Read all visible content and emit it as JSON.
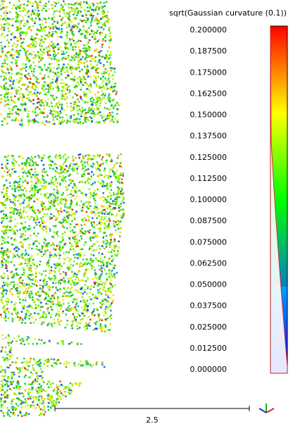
{
  "color_scale": {
    "title": "sqrt(Gaussian curvature (0.1))",
    "labels": [
      "0.200000",
      "0.187500",
      "0.175000",
      "0.162500",
      "0.150000",
      "0.137500",
      "0.125000",
      "0.112500",
      "0.100000",
      "0.087500",
      "0.075000",
      "0.062500",
      "0.050000",
      "0.037500",
      "0.025000",
      "0.012500",
      "0.000000"
    ]
  },
  "scale_bar": {
    "label": "2.5"
  }
}
